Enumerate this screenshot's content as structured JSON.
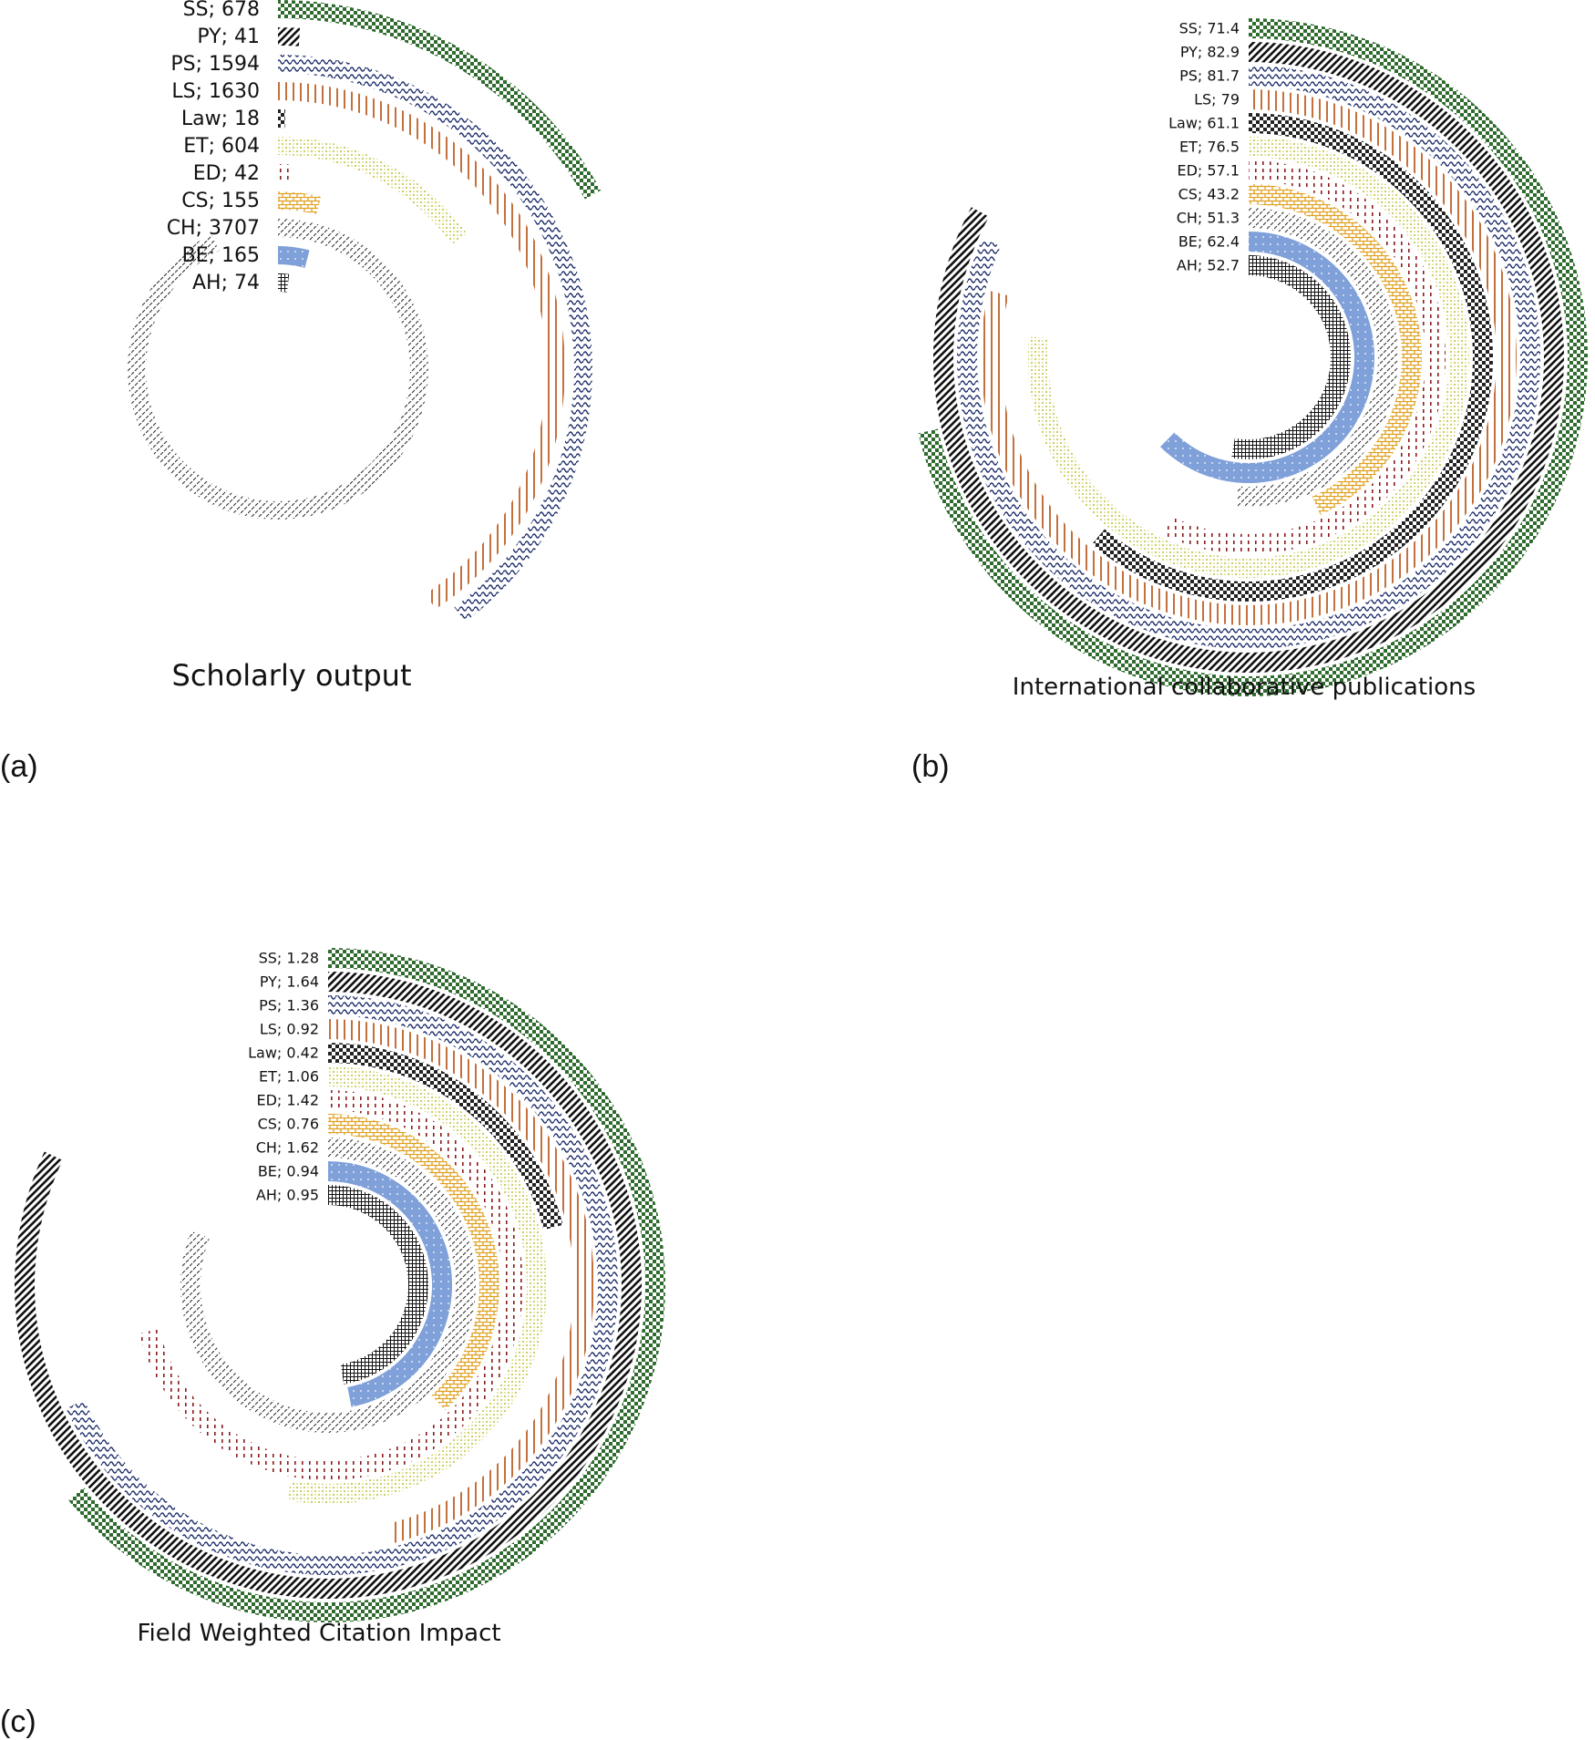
{
  "panel_letters": [
    "(a)",
    "(b)",
    "(c)"
  ],
  "patterns": [
    {
      "code": "SS",
      "base": "#ffffff",
      "ink": "#2f6b2f",
      "kind": "checker"
    },
    {
      "code": "PY",
      "base": "#ffffff",
      "ink": "#111111",
      "kind": "diag"
    },
    {
      "code": "PS",
      "base": "#ffffff",
      "ink": "#1f2f6b",
      "kind": "wave"
    },
    {
      "code": "LS",
      "base": "#ffffff",
      "ink": "#c4703c",
      "kind": "vlines"
    },
    {
      "code": "Law",
      "base": "#ffffff",
      "ink": "#222222",
      "kind": "checker"
    },
    {
      "code": "ET",
      "base": "#ffffff",
      "ink": "#c8c850",
      "kind": "dots"
    },
    {
      "code": "ED",
      "base": "#ffffff",
      "ink": "#8a1a1a",
      "kind": "dashes"
    },
    {
      "code": "CS",
      "base": "#ffffff",
      "ink": "#e0a020",
      "kind": "brick"
    },
    {
      "code": "CH",
      "base": "#ffffff",
      "ink": "#333333",
      "kind": "hatch"
    },
    {
      "code": "BE",
      "base": "#7fa0d8",
      "ink": "#ffffff",
      "kind": "dotsolid"
    },
    {
      "code": "AH",
      "base": "#ffffff",
      "ink": "#111111",
      "kind": "grid"
    }
  ],
  "chart_data": [
    {
      "type": "radial-bar",
      "title": "Scholarly output",
      "categories": [
        "SS",
        "PY",
        "PS",
        "LS",
        "Law",
        "ET",
        "ED",
        "CS",
        "CH",
        "BE",
        "AH"
      ],
      "labels": [
        "SS; 678",
        "PY; 41",
        "PS; 1594",
        "LS; 1630",
        "Law; 18",
        "ET; 604",
        "ED; 42",
        "CS; 155",
        "CH; 3707",
        "BE; 165",
        "AH; 74"
      ],
      "values": [
        678,
        41,
        1594,
        1630,
        18,
        604,
        42,
        155,
        3707,
        165,
        74
      ],
      "max": 4000
    },
    {
      "type": "radial-bar",
      "title": "International collaborative publications",
      "categories": [
        "SS",
        "PY",
        "PS",
        "LS",
        "Law",
        "ET",
        "ED",
        "CS",
        "CH",
        "BE",
        "AH"
      ],
      "labels": [
        "SS; 71.4",
        "PY; 82.9",
        "PS; 81.7",
        "LS; 79",
        "Law; 61.1",
        "ET; 76.5",
        "ED; 57.1",
        "CS; 43.2",
        "CH; 51.3",
        "BE; 62.4",
        "AH; 52.7"
      ],
      "values": [
        71.4,
        82.9,
        81.7,
        79,
        61.1,
        76.5,
        57.1,
        43.2,
        51.3,
        62.4,
        52.7
      ],
      "max": 100
    },
    {
      "type": "radial-bar",
      "title": "Field Weighted Citation Impact",
      "categories": [
        "SS",
        "PY",
        "PS",
        "LS",
        "Law",
        "ET",
        "ED",
        "CS",
        "CH",
        "BE",
        "AH"
      ],
      "labels": [
        "SS; 1.28",
        "PY; 1.64",
        "PS; 1.36",
        "LS; 0.92",
        "Law; 0.42",
        "ET; 1.06",
        "ED; 1.42",
        "CS; 0.76",
        "CH; 1.62",
        "BE; 0.94",
        "AH; 0.95"
      ],
      "values": [
        1.28,
        1.64,
        1.36,
        0.92,
        0.42,
        1.06,
        1.42,
        0.76,
        1.62,
        0.94,
        0.95
      ],
      "max": 2
    }
  ]
}
